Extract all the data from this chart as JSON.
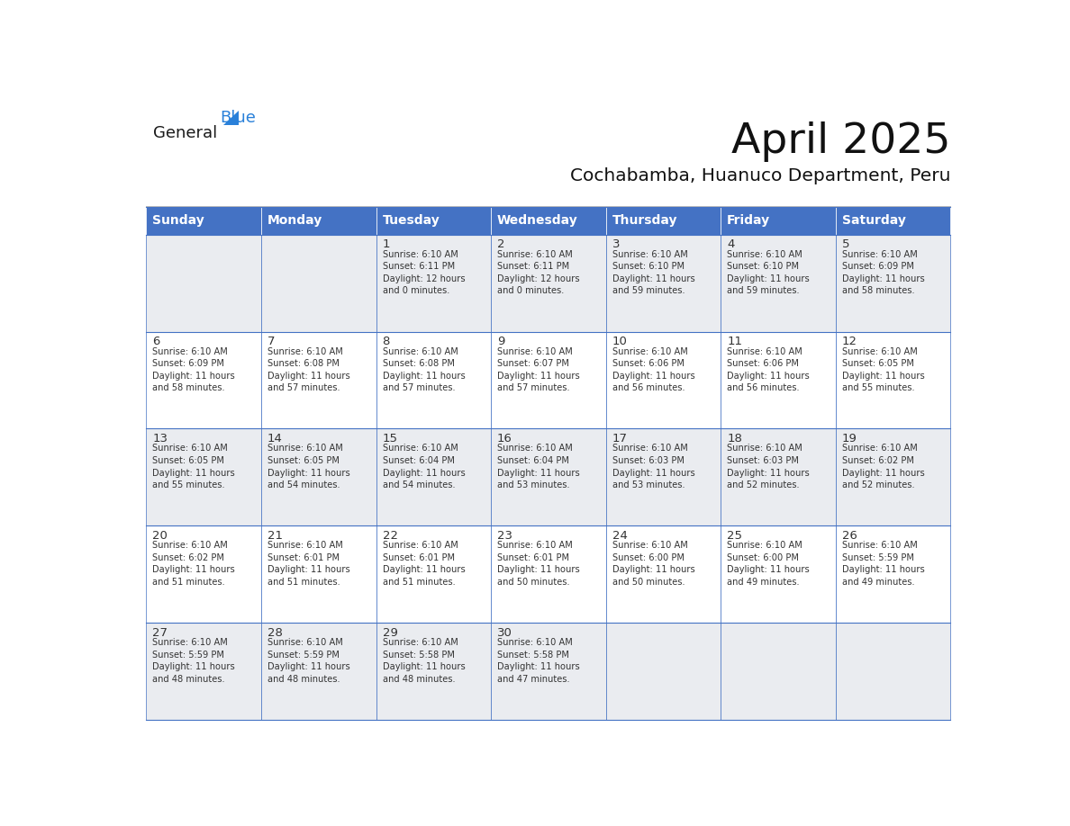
{
  "title": "April 2025",
  "subtitle": "Cochabamba, Huanuco Department, Peru",
  "header_bg": "#4472C4",
  "header_text_color": "#FFFFFF",
  "cell_bg_odd": "#EAECF0",
  "cell_bg_even": "#FFFFFF",
  "border_color": "#4472C4",
  "text_color": "#333333",
  "days_of_week": [
    "Sunday",
    "Monday",
    "Tuesday",
    "Wednesday",
    "Thursday",
    "Friday",
    "Saturday"
  ],
  "weeks": [
    [
      {
        "day": "",
        "info": ""
      },
      {
        "day": "",
        "info": ""
      },
      {
        "day": "1",
        "info": "Sunrise: 6:10 AM\nSunset: 6:11 PM\nDaylight: 12 hours\nand 0 minutes."
      },
      {
        "day": "2",
        "info": "Sunrise: 6:10 AM\nSunset: 6:11 PM\nDaylight: 12 hours\nand 0 minutes."
      },
      {
        "day": "3",
        "info": "Sunrise: 6:10 AM\nSunset: 6:10 PM\nDaylight: 11 hours\nand 59 minutes."
      },
      {
        "day": "4",
        "info": "Sunrise: 6:10 AM\nSunset: 6:10 PM\nDaylight: 11 hours\nand 59 minutes."
      },
      {
        "day": "5",
        "info": "Sunrise: 6:10 AM\nSunset: 6:09 PM\nDaylight: 11 hours\nand 58 minutes."
      }
    ],
    [
      {
        "day": "6",
        "info": "Sunrise: 6:10 AM\nSunset: 6:09 PM\nDaylight: 11 hours\nand 58 minutes."
      },
      {
        "day": "7",
        "info": "Sunrise: 6:10 AM\nSunset: 6:08 PM\nDaylight: 11 hours\nand 57 minutes."
      },
      {
        "day": "8",
        "info": "Sunrise: 6:10 AM\nSunset: 6:08 PM\nDaylight: 11 hours\nand 57 minutes."
      },
      {
        "day": "9",
        "info": "Sunrise: 6:10 AM\nSunset: 6:07 PM\nDaylight: 11 hours\nand 57 minutes."
      },
      {
        "day": "10",
        "info": "Sunrise: 6:10 AM\nSunset: 6:06 PM\nDaylight: 11 hours\nand 56 minutes."
      },
      {
        "day": "11",
        "info": "Sunrise: 6:10 AM\nSunset: 6:06 PM\nDaylight: 11 hours\nand 56 minutes."
      },
      {
        "day": "12",
        "info": "Sunrise: 6:10 AM\nSunset: 6:05 PM\nDaylight: 11 hours\nand 55 minutes."
      }
    ],
    [
      {
        "day": "13",
        "info": "Sunrise: 6:10 AM\nSunset: 6:05 PM\nDaylight: 11 hours\nand 55 minutes."
      },
      {
        "day": "14",
        "info": "Sunrise: 6:10 AM\nSunset: 6:05 PM\nDaylight: 11 hours\nand 54 minutes."
      },
      {
        "day": "15",
        "info": "Sunrise: 6:10 AM\nSunset: 6:04 PM\nDaylight: 11 hours\nand 54 minutes."
      },
      {
        "day": "16",
        "info": "Sunrise: 6:10 AM\nSunset: 6:04 PM\nDaylight: 11 hours\nand 53 minutes."
      },
      {
        "day": "17",
        "info": "Sunrise: 6:10 AM\nSunset: 6:03 PM\nDaylight: 11 hours\nand 53 minutes."
      },
      {
        "day": "18",
        "info": "Sunrise: 6:10 AM\nSunset: 6:03 PM\nDaylight: 11 hours\nand 52 minutes."
      },
      {
        "day": "19",
        "info": "Sunrise: 6:10 AM\nSunset: 6:02 PM\nDaylight: 11 hours\nand 52 minutes."
      }
    ],
    [
      {
        "day": "20",
        "info": "Sunrise: 6:10 AM\nSunset: 6:02 PM\nDaylight: 11 hours\nand 51 minutes."
      },
      {
        "day": "21",
        "info": "Sunrise: 6:10 AM\nSunset: 6:01 PM\nDaylight: 11 hours\nand 51 minutes."
      },
      {
        "day": "22",
        "info": "Sunrise: 6:10 AM\nSunset: 6:01 PM\nDaylight: 11 hours\nand 51 minutes."
      },
      {
        "day": "23",
        "info": "Sunrise: 6:10 AM\nSunset: 6:01 PM\nDaylight: 11 hours\nand 50 minutes."
      },
      {
        "day": "24",
        "info": "Sunrise: 6:10 AM\nSunset: 6:00 PM\nDaylight: 11 hours\nand 50 minutes."
      },
      {
        "day": "25",
        "info": "Sunrise: 6:10 AM\nSunset: 6:00 PM\nDaylight: 11 hours\nand 49 minutes."
      },
      {
        "day": "26",
        "info": "Sunrise: 6:10 AM\nSunset: 5:59 PM\nDaylight: 11 hours\nand 49 minutes."
      }
    ],
    [
      {
        "day": "27",
        "info": "Sunrise: 6:10 AM\nSunset: 5:59 PM\nDaylight: 11 hours\nand 48 minutes."
      },
      {
        "day": "28",
        "info": "Sunrise: 6:10 AM\nSunset: 5:59 PM\nDaylight: 11 hours\nand 48 minutes."
      },
      {
        "day": "29",
        "info": "Sunrise: 6:10 AM\nSunset: 5:58 PM\nDaylight: 11 hours\nand 48 minutes."
      },
      {
        "day": "30",
        "info": "Sunrise: 6:10 AM\nSunset: 5:58 PM\nDaylight: 11 hours\nand 47 minutes."
      },
      {
        "day": "",
        "info": ""
      },
      {
        "day": "",
        "info": ""
      },
      {
        "day": "",
        "info": ""
      }
    ]
  ],
  "logo_text_general": "General",
  "logo_text_blue": "Blue",
  "logo_color_general": "#1a1a1a",
  "logo_color_blue": "#2980D9",
  "logo_triangle_color": "#2980D9"
}
